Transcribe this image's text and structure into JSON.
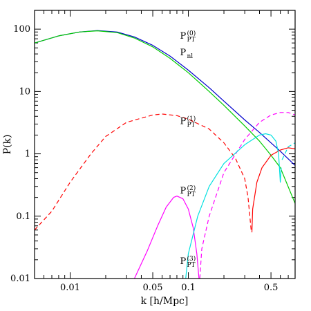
{
  "chart_data": {
    "type": "line",
    "title": "",
    "xlabel": "k [h/Mpc]",
    "ylabel": "P(k)",
    "xscale": "log",
    "yscale": "log",
    "xlim": [
      0.005,
      0.8
    ],
    "ylim": [
      0.01,
      200
    ],
    "x_tick_labels": [
      "0.01",
      "0.05",
      "0.1",
      "0.5"
    ],
    "x_tick_values": [
      0.01,
      0.05,
      0.1,
      0.5
    ],
    "y_tick_labels": [
      "0.01",
      "0.1",
      "1",
      "10",
      "100"
    ],
    "y_tick_values": [
      0.01,
      0.1,
      1,
      10,
      100
    ],
    "grid": false,
    "series": [
      {
        "name": "P_PT^(0)",
        "color": "#0000cc",
        "dash": "solid",
        "points": [
          [
            0.005,
            60
          ],
          [
            0.008,
            78
          ],
          [
            0.012,
            90
          ],
          [
            0.017,
            95
          ],
          [
            0.025,
            90
          ],
          [
            0.035,
            75
          ],
          [
            0.05,
            55
          ],
          [
            0.07,
            37
          ],
          [
            0.1,
            22
          ],
          [
            0.15,
            11.5
          ],
          [
            0.2,
            7
          ],
          [
            0.3,
            3.5
          ],
          [
            0.4,
            2.2
          ],
          [
            0.5,
            1.5
          ],
          [
            0.6,
            1.1
          ],
          [
            0.8,
            0.65
          ]
        ]
      },
      {
        "name": "P_nl",
        "color": "#00cc00",
        "dash": "solid",
        "points": [
          [
            0.005,
            60
          ],
          [
            0.008,
            78
          ],
          [
            0.012,
            90
          ],
          [
            0.017,
            94
          ],
          [
            0.025,
            88
          ],
          [
            0.035,
            72
          ],
          [
            0.05,
            52
          ],
          [
            0.07,
            34
          ],
          [
            0.1,
            20
          ],
          [
            0.15,
            10
          ],
          [
            0.2,
            6
          ],
          [
            0.3,
            2.8
          ],
          [
            0.4,
            1.6
          ],
          [
            0.5,
            0.95
          ],
          [
            0.6,
            0.6
          ],
          [
            0.8,
            0.16
          ]
        ]
      },
      {
        "name": "P_PT^(1)",
        "color": "#ff0000",
        "dash": "dashed",
        "points": [
          [
            0.005,
            0.06
          ],
          [
            0.007,
            0.12
          ],
          [
            0.01,
            0.35
          ],
          [
            0.015,
            1
          ],
          [
            0.02,
            1.9
          ],
          [
            0.03,
            3.2
          ],
          [
            0.05,
            4.2
          ],
          [
            0.06,
            4.35
          ],
          [
            0.08,
            4.1
          ],
          [
            0.1,
            3.6
          ],
          [
            0.15,
            2.5
          ],
          [
            0.2,
            1.5
          ],
          [
            0.25,
            0.85
          ],
          [
            0.3,
            0.4
          ],
          [
            0.32,
            0.2
          ],
          [
            0.335,
            0.08
          ],
          [
            0.34,
            0.06
          ]
        ]
      },
      {
        "name": "P_PT^(1)",
        "color": "#ff0000",
        "dash": "solid",
        "points": [
          [
            0.345,
            0.055
          ],
          [
            0.35,
            0.13
          ],
          [
            0.38,
            0.35
          ],
          [
            0.42,
            0.6
          ],
          [
            0.5,
            0.95
          ],
          [
            0.6,
            1.15
          ],
          [
            0.7,
            1.25
          ],
          [
            0.8,
            1.2
          ]
        ]
      },
      {
        "name": "P_PT^(2)",
        "color": "#ff00ff",
        "dash": "solid",
        "points": [
          [
            0.035,
            0.01
          ],
          [
            0.045,
            0.028
          ],
          [
            0.055,
            0.07
          ],
          [
            0.065,
            0.14
          ],
          [
            0.075,
            0.2
          ],
          [
            0.08,
            0.21
          ],
          [
            0.09,
            0.19
          ],
          [
            0.1,
            0.13
          ],
          [
            0.11,
            0.065
          ],
          [
            0.118,
            0.025
          ],
          [
            0.123,
            0.01
          ]
        ]
      },
      {
        "name": "P_PT^(2)",
        "color": "#ff00ff",
        "dash": "dashed",
        "points": [
          [
            0.125,
            0.01
          ],
          [
            0.13,
            0.03
          ],
          [
            0.15,
            0.1
          ],
          [
            0.2,
            0.5
          ],
          [
            0.3,
            1.7
          ],
          [
            0.4,
            3.2
          ],
          [
            0.5,
            4.2
          ],
          [
            0.6,
            4.6
          ],
          [
            0.7,
            4.6
          ],
          [
            0.8,
            4.2
          ]
        ]
      },
      {
        "name": "P_PT^(3)",
        "color": "#00e0e0",
        "dash": "solid",
        "points": [
          [
            0.095,
            0.01
          ],
          [
            0.1,
            0.025
          ],
          [
            0.12,
            0.1
          ],
          [
            0.15,
            0.3
          ],
          [
            0.2,
            0.7
          ],
          [
            0.3,
            1.4
          ],
          [
            0.4,
            2
          ],
          [
            0.45,
            2.1
          ],
          [
            0.5,
            2
          ],
          [
            0.55,
            1.6
          ],
          [
            0.58,
            1
          ],
          [
            0.6,
            0.35
          ],
          [
            0.61,
            0.6
          ]
        ]
      },
      {
        "name": "P_PT^(3)",
        "color": "#00e0e0",
        "dash": "dashed",
        "points": [
          [
            0.62,
            0.8
          ],
          [
            0.7,
            1.3
          ],
          [
            0.8,
            1.5
          ]
        ]
      }
    ],
    "annotations": [
      {
        "main": "P",
        "sub": "PT",
        "sup": "(0)",
        "x": 0.085,
        "y": 70
      },
      {
        "main": "P",
        "sub": "nl",
        "sup": "",
        "x": 0.085,
        "y": 38
      },
      {
        "main": "P",
        "sub": "PT",
        "sup": "(1)",
        "x": 0.085,
        "y": 3.0
      },
      {
        "main": "P",
        "sub": "PT",
        "sup": "(2)",
        "x": 0.085,
        "y": 0.23
      },
      {
        "main": "P",
        "sub": "PT",
        "sup": "(3)",
        "x": 0.085,
        "y": 0.017
      }
    ]
  }
}
